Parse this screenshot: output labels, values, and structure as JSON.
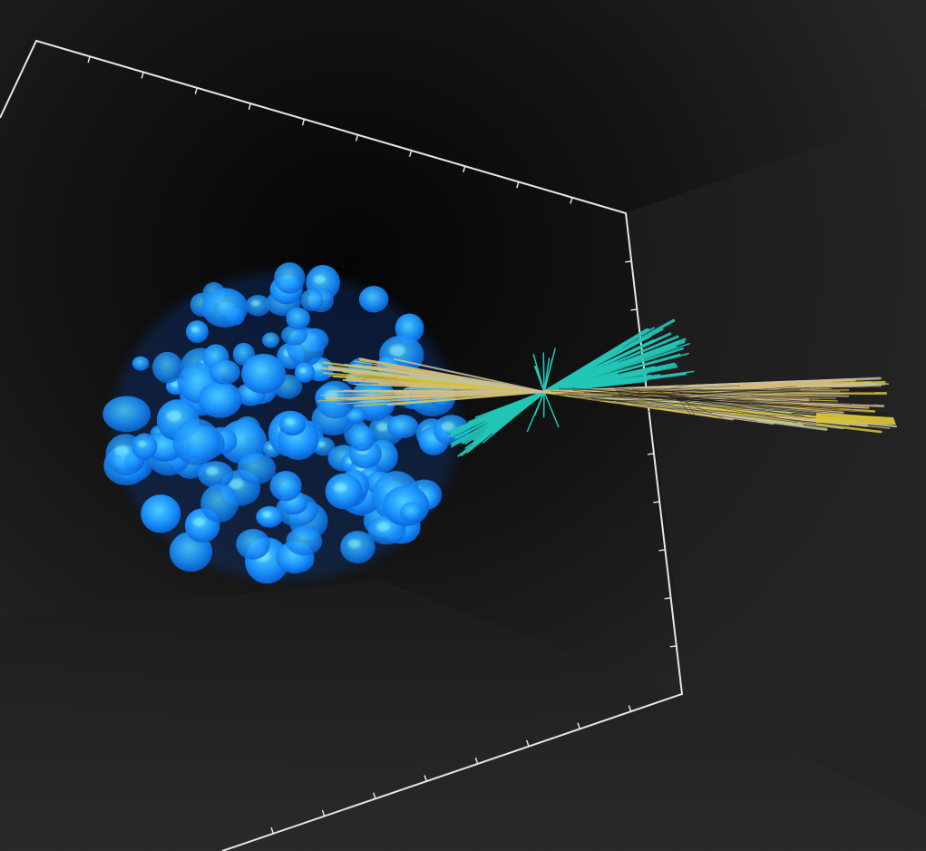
{
  "viewer": {
    "background": "#1b1b1b",
    "bounding_box_color": "#e6e6e6",
    "volume_color": "#1e8fff",
    "volume_highlight_color": "#7fe7ff",
    "track_colors": {
      "teal": "#22c7b8",
      "tan": "#d8b88a",
      "sage": "#b9c7a4",
      "yellow": "#d8c23a"
    },
    "axis_labels": []
  }
}
